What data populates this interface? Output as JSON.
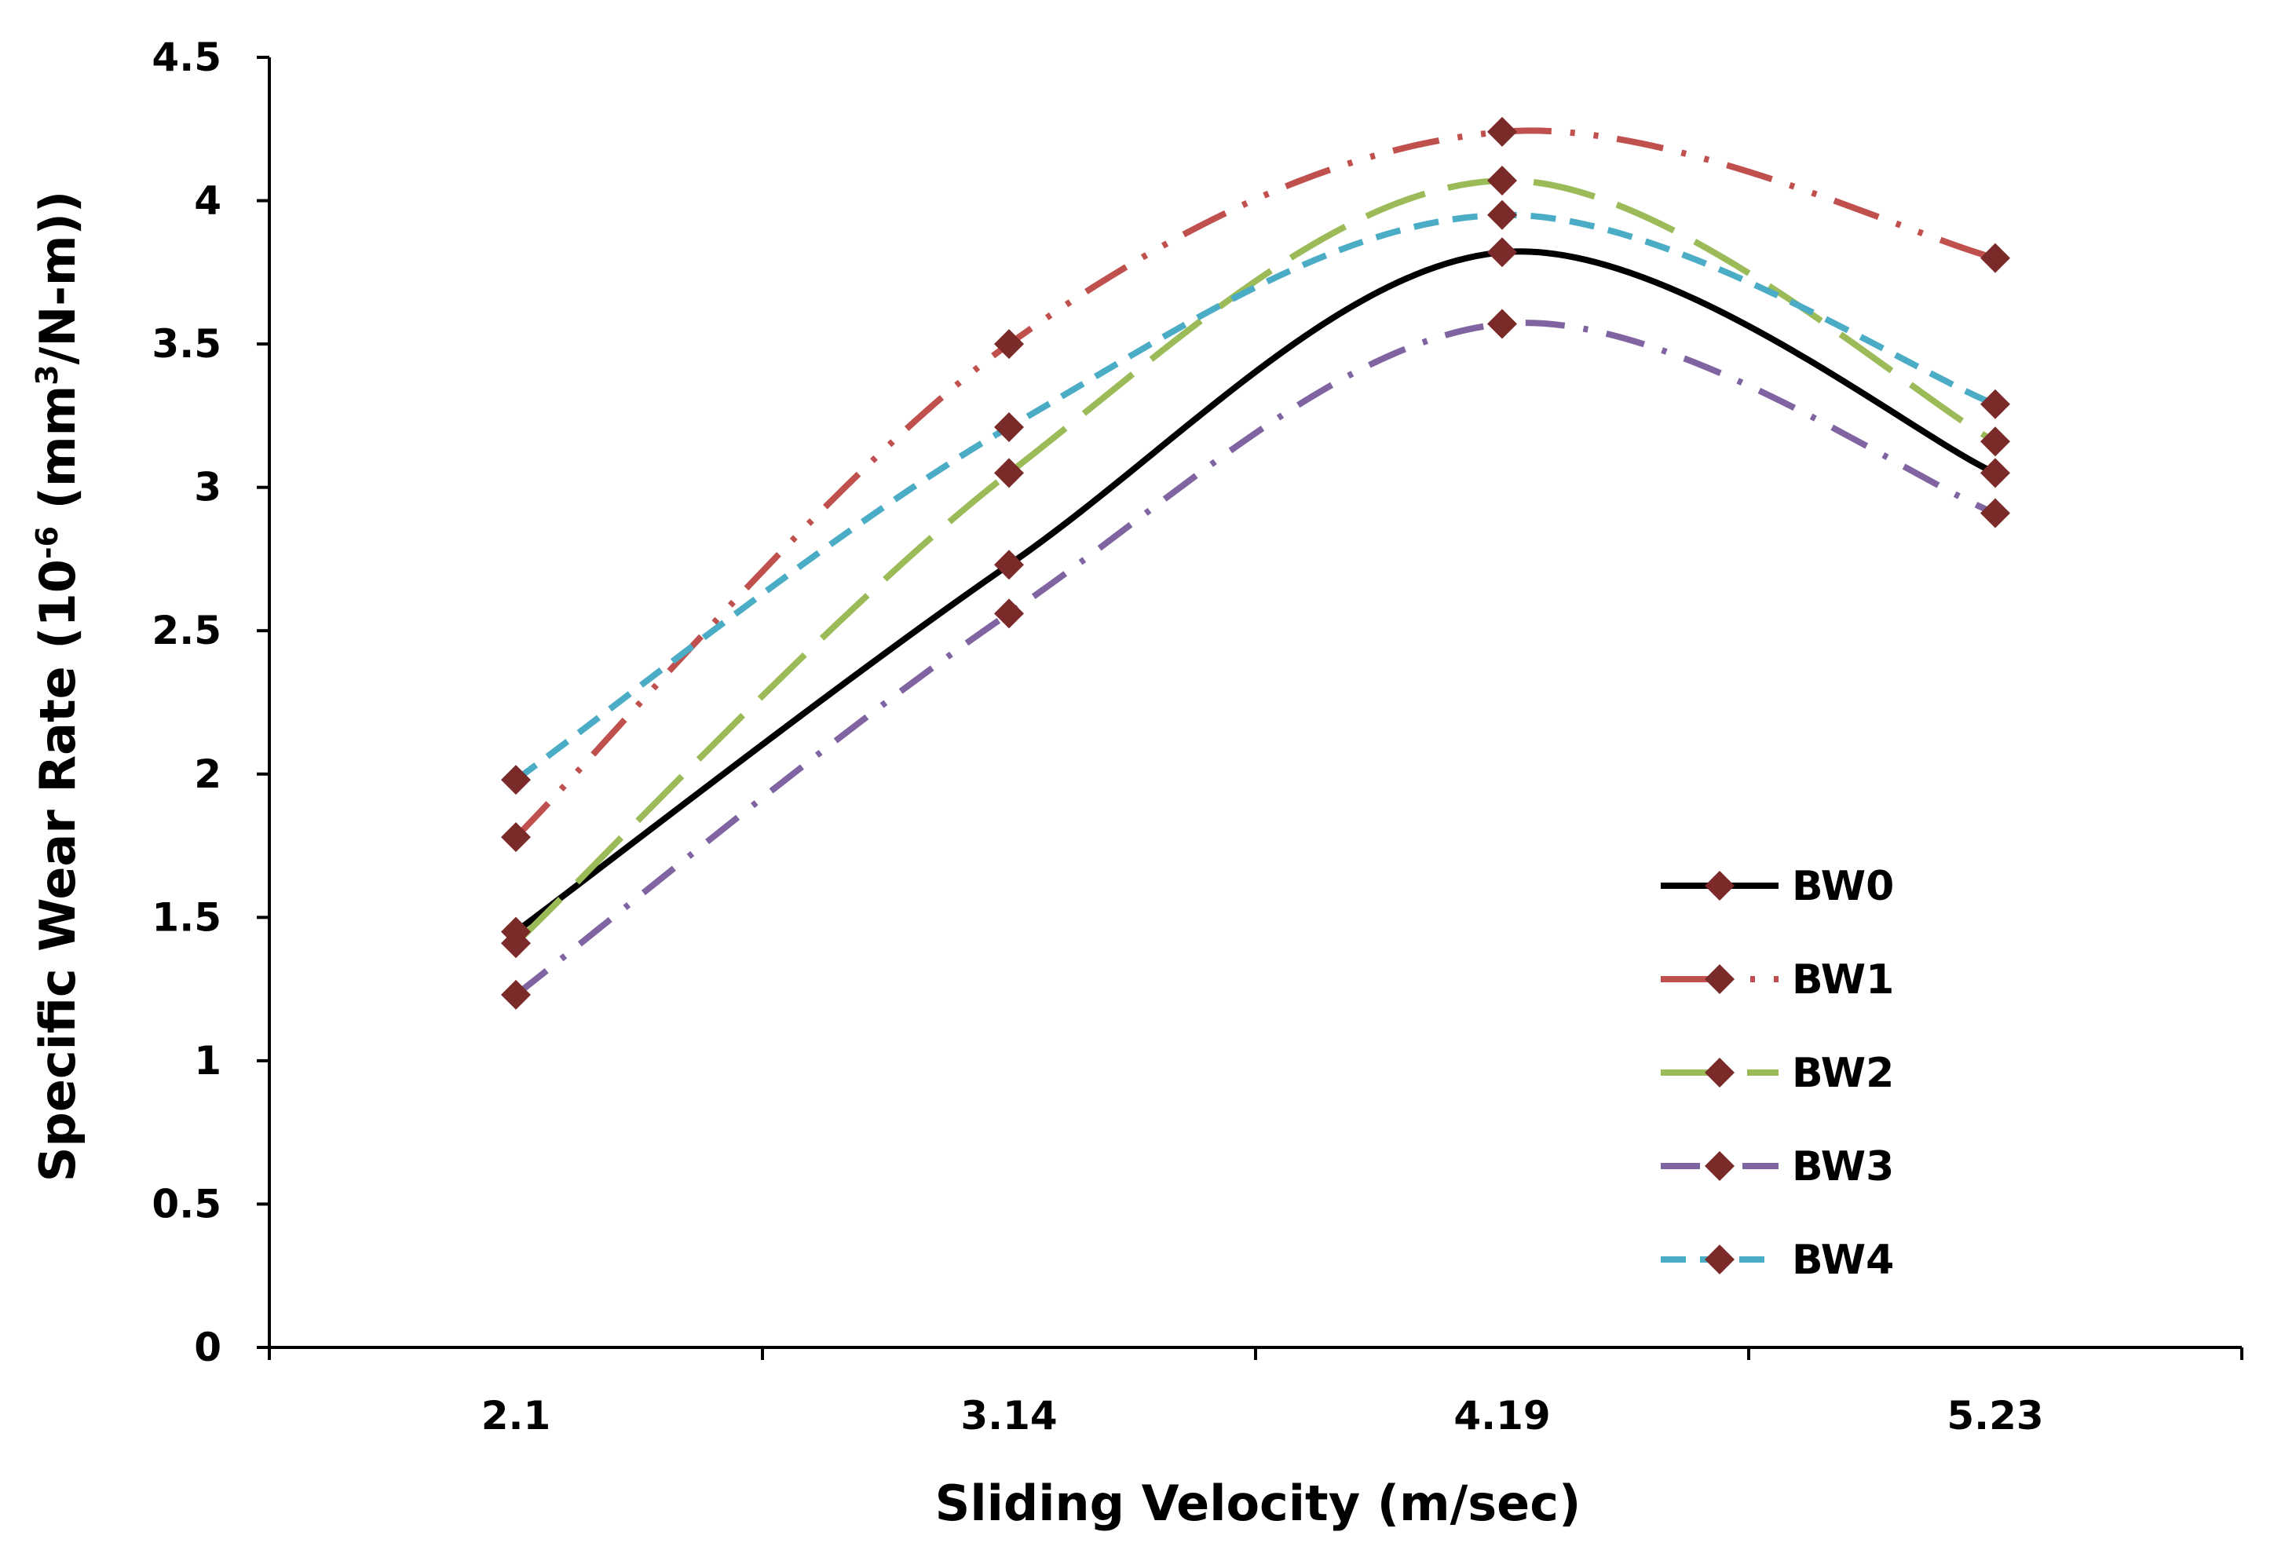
{
  "chart_data": {
    "type": "line",
    "title": "",
    "xlabel": "Sliding Velocity (m/sec)",
    "ylabel": {
      "prefix": "Specific Wear Rate (10",
      "exp": "-6",
      "mid": " (mm",
      "exp2": "3",
      "suffix": "/N-m))"
    },
    "categories": [
      "2.1",
      "3.14",
      "4.19",
      "5.23"
    ],
    "ylim": [
      0,
      4.5
    ],
    "yticks": [
      0,
      0.5,
      1,
      1.5,
      2,
      2.5,
      3,
      3.5,
      4,
      4.5
    ],
    "ytick_labels": [
      "0",
      "0.5",
      "1",
      "1.5",
      "2",
      "2.5",
      "3",
      "3.5",
      "4",
      "4.5"
    ],
    "grid": false,
    "legend_position": "bottom-right",
    "marker": "diamond",
    "marker_color": "#7B2A2A",
    "series": [
      {
        "name": "BW0",
        "values": [
          1.45,
          2.73,
          3.82,
          3.05
        ],
        "color": "#000000",
        "dash": "solid"
      },
      {
        "name": "BW1",
        "values": [
          1.78,
          3.5,
          4.24,
          3.8
        ],
        "color": "#C0504D",
        "dash": "dash-dot-dot"
      },
      {
        "name": "BW2",
        "values": [
          1.41,
          3.05,
          4.07,
          3.16
        ],
        "color": "#9BBB59",
        "dash": "long-dash"
      },
      {
        "name": "BW3",
        "values": [
          1.23,
          2.56,
          3.57,
          2.91
        ],
        "color": "#8064A2",
        "dash": "dash-dot"
      },
      {
        "name": "BW4",
        "values": [
          1.98,
          3.21,
          3.95,
          3.29
        ],
        "color": "#4BACC6",
        "dash": "dash"
      }
    ]
  }
}
